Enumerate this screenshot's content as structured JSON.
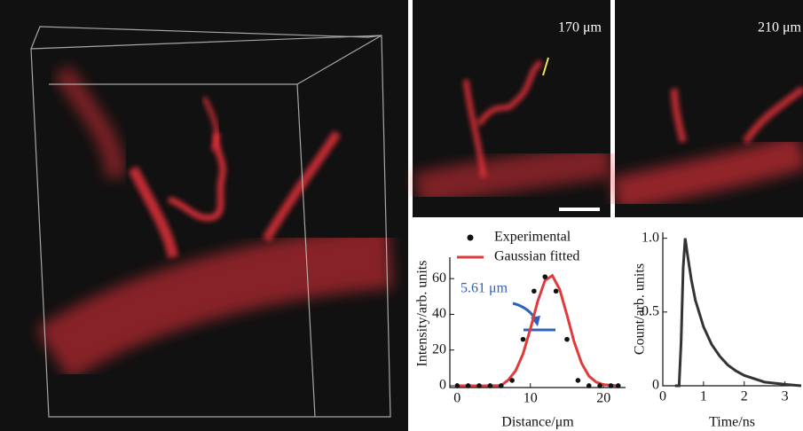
{
  "images": [
    {
      "label": "170 μm"
    },
    {
      "label": "210 μm"
    }
  ],
  "chart_data": [
    {
      "type": "scatter",
      "xlabel": "Distance/μm",
      "ylabel": "Intensity/arb. units",
      "annotation": "5.61 μm",
      "xlim": [
        -1,
        23
      ],
      "xticks": [
        0,
        10,
        20
      ],
      "ylim": [
        -1,
        72
      ],
      "yticks": [
        0,
        20,
        40,
        60
      ],
      "series": [
        {
          "name": "Experimental",
          "color": "#111111",
          "mode": "markers",
          "x": [
            0,
            1.5,
            3,
            4.5,
            6,
            7.5,
            9,
            10.5,
            12,
            13.5,
            15,
            16.5,
            18,
            19.5,
            21,
            22
          ],
          "values": [
            0,
            0,
            0,
            0,
            0,
            3,
            26,
            53,
            61,
            53,
            26,
            3,
            0,
            0,
            0,
            0
          ]
        },
        {
          "name": "Gaussian fitted",
          "color": "#e03a3a",
          "mode": "line",
          "x": [
            0,
            2,
            4,
            6,
            7,
            8,
            9,
            10,
            11,
            12,
            13,
            14,
            15,
            16,
            17,
            18,
            19,
            20,
            22
          ],
          "values": [
            0,
            0,
            0,
            0.1,
            3.3,
            8.5,
            17.9,
            31.8,
            47.3,
            59,
            61.7,
            54,
            39.6,
            24.3,
            12.6,
            5.4,
            2,
            0.6,
            0
          ]
        }
      ]
    },
    {
      "type": "line",
      "xlabel": "Time/ns",
      "ylabel": "Count/arb. units",
      "xlim": [
        0,
        3.4
      ],
      "xticks": [
        0,
        1,
        2,
        3
      ],
      "ylim": [
        0,
        1.04
      ],
      "yticks": [
        0,
        0.5,
        {
          "value": 1,
          "label": "1.0"
        }
      ],
      "series": [
        {
          "color": "#333333",
          "x": [
            0.3,
            0.4,
            0.45,
            0.5,
            0.55,
            0.6,
            0.7,
            0.8,
            1,
            1.2,
            1.4,
            1.6,
            1.8,
            2,
            2.5,
            3,
            3.4
          ],
          "values": [
            0,
            0,
            0.3,
            0.8,
            1,
            0.9,
            0.72,
            0.58,
            0.4,
            0.28,
            0.2,
            0.14,
            0.1,
            0.07,
            0.025,
            0.01,
            0
          ]
        }
      ]
    }
  ]
}
